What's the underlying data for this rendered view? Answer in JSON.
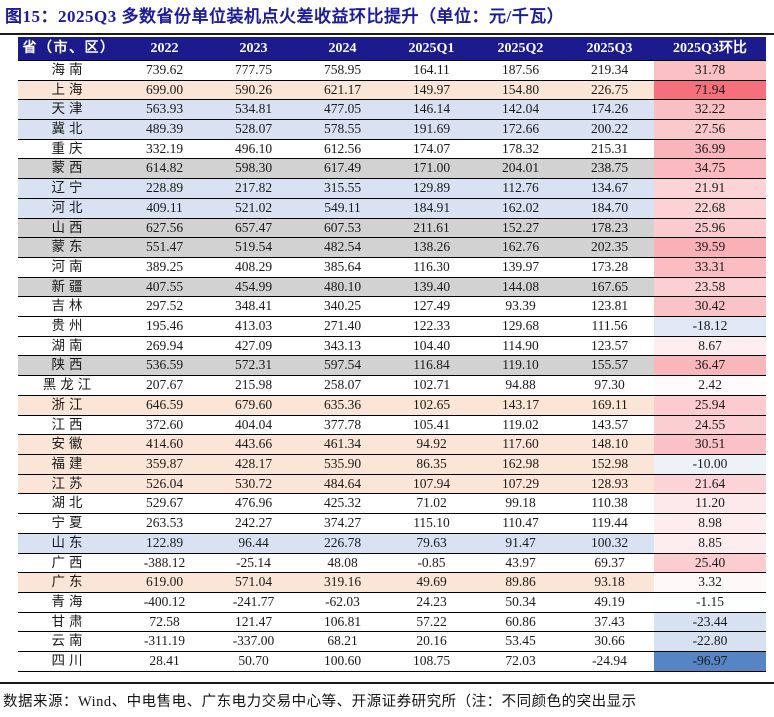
{
  "figure": {
    "title": "图15：2025Q3 多数省份单位装机点火差收益环比提升（单位：元/千瓦）",
    "source_note": "数据来源：Wind、中电售电、广东电力交易中心等、开源证券研究所（注：不同颜色的突出显示"
  },
  "colors": {
    "title_text": "#1c1c9c",
    "header_bg": "#1b1b8e",
    "header_text": "#ffffff",
    "row_white": "#ffffff",
    "row_pink": "#fbe5d6",
    "row_blue": "#d9e2f3",
    "row_gray": "#d2d2d2",
    "qoq_positive_max": "#f4707a",
    "qoq_negative_max": "#5585c4"
  },
  "table": {
    "columns": [
      "省（市、区）",
      "2022",
      "2023",
      "2024",
      "2025Q1",
      "2025Q2",
      "2025Q3",
      "2025Q3环比"
    ],
    "heatmap": {
      "max_value": 71.94,
      "min_value": -96.97
    },
    "rows": [
      {
        "province": "海南",
        "values": [
          "739.62",
          "777.75",
          "758.95",
          "164.11",
          "187.56",
          "219.34"
        ],
        "qoq": "31.78",
        "bg": "white"
      },
      {
        "province": "上海",
        "values": [
          "699.00",
          "590.26",
          "621.17",
          "149.97",
          "154.80",
          "226.75"
        ],
        "qoq": "71.94",
        "bg": "pink"
      },
      {
        "province": "天津",
        "values": [
          "563.93",
          "534.81",
          "477.05",
          "146.14",
          "142.04",
          "174.26"
        ],
        "qoq": "32.22",
        "bg": "blue"
      },
      {
        "province": "冀北",
        "values": [
          "489.39",
          "528.07",
          "578.55",
          "191.69",
          "172.66",
          "200.22"
        ],
        "qoq": "27.56",
        "bg": "blue"
      },
      {
        "province": "重庆",
        "values": [
          "332.19",
          "496.10",
          "612.56",
          "174.07",
          "178.32",
          "215.31"
        ],
        "qoq": "36.99",
        "bg": "white"
      },
      {
        "province": "蒙西",
        "values": [
          "614.82",
          "598.30",
          "617.49",
          "171.00",
          "204.01",
          "238.75"
        ],
        "qoq": "34.75",
        "bg": "gray"
      },
      {
        "province": "辽宁",
        "values": [
          "228.89",
          "217.82",
          "315.55",
          "129.89",
          "112.76",
          "134.67"
        ],
        "qoq": "21.91",
        "bg": "blue"
      },
      {
        "province": "河北",
        "values": [
          "409.11",
          "521.02",
          "549.11",
          "184.91",
          "162.02",
          "184.70"
        ],
        "qoq": "22.68",
        "bg": "blue"
      },
      {
        "province": "山西",
        "values": [
          "627.56",
          "657.47",
          "607.53",
          "211.61",
          "152.27",
          "178.23"
        ],
        "qoq": "25.96",
        "bg": "gray"
      },
      {
        "province": "蒙东",
        "values": [
          "551.47",
          "519.54",
          "482.54",
          "138.26",
          "162.76",
          "202.35"
        ],
        "qoq": "39.59",
        "bg": "gray"
      },
      {
        "province": "河南",
        "values": [
          "389.25",
          "408.29",
          "385.64",
          "116.30",
          "139.97",
          "173.28"
        ],
        "qoq": "33.31",
        "bg": "white"
      },
      {
        "province": "新疆",
        "values": [
          "407.55",
          "454.99",
          "480.10",
          "139.40",
          "144.08",
          "167.65"
        ],
        "qoq": "23.58",
        "bg": "gray"
      },
      {
        "province": "吉林",
        "values": [
          "297.52",
          "348.41",
          "340.25",
          "127.49",
          "93.39",
          "123.81"
        ],
        "qoq": "30.42",
        "bg": "white"
      },
      {
        "province": "贵州",
        "values": [
          "195.46",
          "413.03",
          "271.40",
          "122.33",
          "129.68",
          "111.56"
        ],
        "qoq": "-18.12",
        "bg": "white"
      },
      {
        "province": "湖南",
        "values": [
          "269.94",
          "427.09",
          "343.13",
          "104.40",
          "114.90",
          "123.57"
        ],
        "qoq": "8.67",
        "bg": "white"
      },
      {
        "province": "陕西",
        "values": [
          "536.59",
          "572.31",
          "597.54",
          "116.84",
          "119.10",
          "155.57"
        ],
        "qoq": "36.47",
        "bg": "gray"
      },
      {
        "province": "黑龙江",
        "values": [
          "207.67",
          "215.98",
          "258.07",
          "102.71",
          "94.88",
          "97.30"
        ],
        "qoq": "2.42",
        "bg": "white"
      },
      {
        "province": "浙江",
        "values": [
          "646.59",
          "679.60",
          "635.36",
          "102.65",
          "143.17",
          "169.11"
        ],
        "qoq": "25.94",
        "bg": "pink"
      },
      {
        "province": "江西",
        "values": [
          "372.60",
          "404.04",
          "377.78",
          "105.41",
          "119.02",
          "143.57"
        ],
        "qoq": "24.55",
        "bg": "white"
      },
      {
        "province": "安徽",
        "values": [
          "414.60",
          "443.66",
          "461.34",
          "94.92",
          "117.60",
          "148.10"
        ],
        "qoq": "30.51",
        "bg": "pink"
      },
      {
        "province": "福建",
        "values": [
          "359.87",
          "428.17",
          "535.90",
          "86.35",
          "162.98",
          "152.98"
        ],
        "qoq": "-10.00",
        "bg": "pink"
      },
      {
        "province": "江苏",
        "values": [
          "526.04",
          "530.72",
          "484.64",
          "107.94",
          "107.29",
          "128.93"
        ],
        "qoq": "21.64",
        "bg": "pink"
      },
      {
        "province": "湖北",
        "values": [
          "529.67",
          "476.96",
          "425.32",
          "71.02",
          "99.18",
          "110.38"
        ],
        "qoq": "11.20",
        "bg": "white"
      },
      {
        "province": "宁夏",
        "values": [
          "263.53",
          "242.27",
          "374.27",
          "115.10",
          "110.47",
          "119.44"
        ],
        "qoq": "8.98",
        "bg": "white"
      },
      {
        "province": "山东",
        "values": [
          "122.89",
          "96.44",
          "226.78",
          "79.63",
          "91.47",
          "100.32"
        ],
        "qoq": "8.85",
        "bg": "blue"
      },
      {
        "province": "广西",
        "values": [
          "-388.12",
          "-25.14",
          "48.08",
          "-0.85",
          "43.97",
          "69.37"
        ],
        "qoq": "25.40",
        "bg": "white"
      },
      {
        "province": "广东",
        "values": [
          "619.00",
          "571.04",
          "319.16",
          "49.69",
          "89.86",
          "93.18"
        ],
        "qoq": "3.32",
        "bg": "pink"
      },
      {
        "province": "青海",
        "values": [
          "-400.12",
          "-241.77",
          "-62.03",
          "24.23",
          "50.34",
          "49.19"
        ],
        "qoq": "-1.15",
        "bg": "white"
      },
      {
        "province": "甘肃",
        "values": [
          "72.58",
          "121.47",
          "106.81",
          "57.22",
          "60.86",
          "37.43"
        ],
        "qoq": "-23.44",
        "bg": "white"
      },
      {
        "province": "云南",
        "values": [
          "-311.19",
          "-337.00",
          "68.21",
          "20.16",
          "53.45",
          "30.66"
        ],
        "qoq": "-22.80",
        "bg": "white"
      },
      {
        "province": "四川",
        "values": [
          "28.41",
          "50.70",
          "100.60",
          "108.75",
          "72.03",
          "-24.94"
        ],
        "qoq": "-96.97",
        "bg": "white"
      }
    ]
  }
}
